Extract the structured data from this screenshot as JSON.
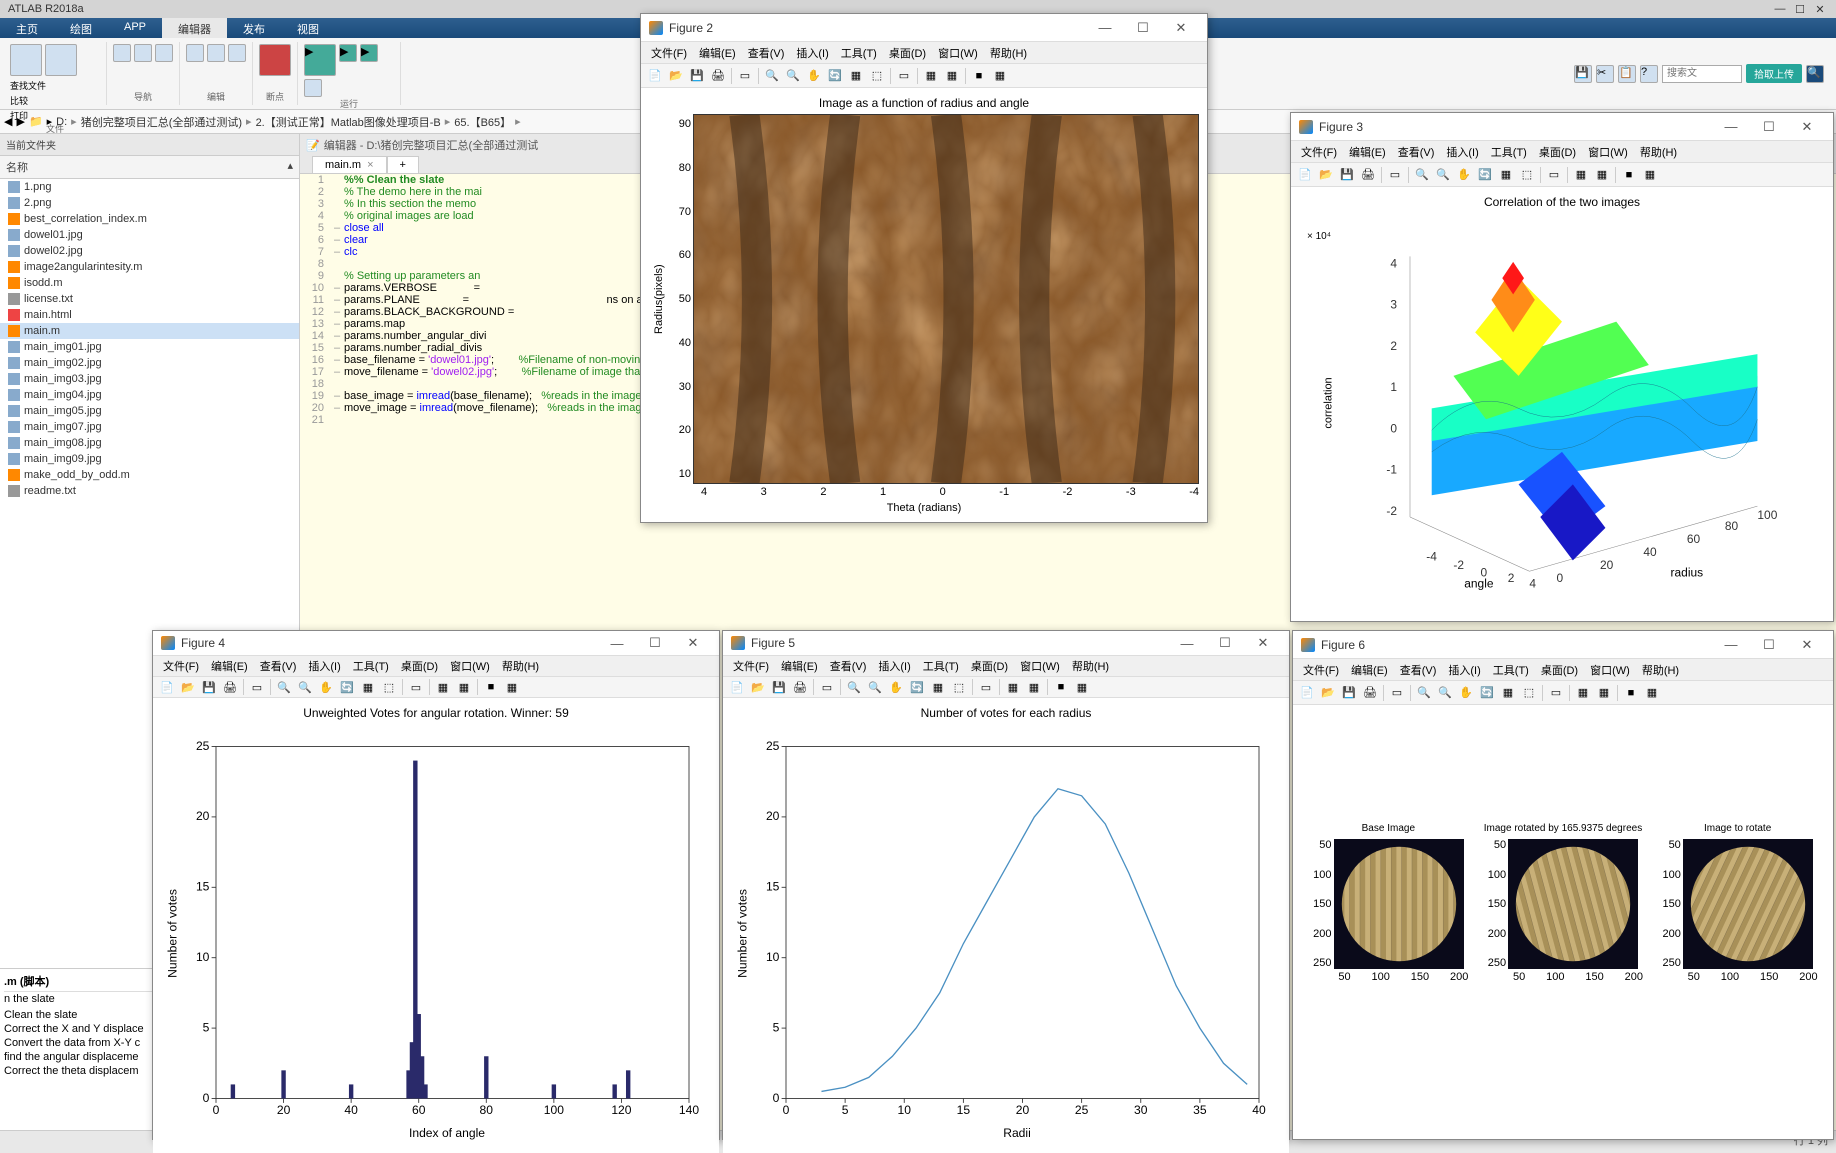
{
  "app": {
    "title": "ATLAB R2018a"
  },
  "ribbon": {
    "tabs": [
      "主页",
      "绘图",
      "APP",
      "编辑器",
      "发布",
      "视图"
    ],
    "active_tab": 3,
    "groups": {
      "file": {
        "label": "文件",
        "items": [
          "打开",
          "保存",
          "查找文件",
          "比较",
          "打印"
        ]
      },
      "nav": {
        "label": "导航",
        "items": [
          "转至",
          "查找",
          "书签"
        ]
      },
      "edit": {
        "label": "编辑",
        "items": [
          "插入",
          "注释",
          "缩进"
        ]
      },
      "bp": {
        "label": "断点",
        "items": [
          "断点"
        ]
      },
      "run": {
        "label": "运行",
        "items": [
          "运行",
          "运行并前进",
          "运行节",
          "前进",
          "运行并计时"
        ]
      }
    },
    "search_placeholder": "搜索文",
    "upload_label": "拾取上传"
  },
  "pathbar": {
    "drive": "D:",
    "segs": [
      "猪创完整项目汇总(全部通过测试)",
      "2.【测试正常】Matlab图像处理项目-B",
      "65.【B65】"
    ]
  },
  "file_panel": {
    "header": "当前文件夹",
    "col": "名称",
    "files": [
      {
        "name": "1.png",
        "type": "img"
      },
      {
        "name": "2.png",
        "type": "img"
      },
      {
        "name": "best_correlation_index.m",
        "type": "m"
      },
      {
        "name": "dowel01.jpg",
        "type": "img"
      },
      {
        "name": "dowel02.jpg",
        "type": "img"
      },
      {
        "name": "image2angularintesity.m",
        "type": "m"
      },
      {
        "name": "isodd.m",
        "type": "m"
      },
      {
        "name": "license.txt",
        "type": "txt"
      },
      {
        "name": "main.html",
        "type": "html"
      },
      {
        "name": "main.m",
        "type": "m",
        "selected": true
      },
      {
        "name": "main_img01.jpg",
        "type": "img"
      },
      {
        "name": "main_img02.jpg",
        "type": "img"
      },
      {
        "name": "main_img03.jpg",
        "type": "img"
      },
      {
        "name": "main_img04.jpg",
        "type": "img"
      },
      {
        "name": "main_img05.jpg",
        "type": "img"
      },
      {
        "name": "main_img07.jpg",
        "type": "img"
      },
      {
        "name": "main_img08.jpg",
        "type": "img"
      },
      {
        "name": "main_img09.jpg",
        "type": "img"
      },
      {
        "name": "make_odd_by_odd.m",
        "type": "m"
      },
      {
        "name": "readme.txt",
        "type": "txt"
      }
    ]
  },
  "details": {
    "header": ".m (脚本)",
    "lines": [
      "n the slate",
      "",
      "Clean the slate",
      "Correct the X and Y displace",
      "Convert the data from X-Y c",
      "find the angular displaceme",
      "Correct the theta displacem"
    ]
  },
  "editor": {
    "path_label": "编辑器 - D:\\猪创完整项目汇总(全部通过测试",
    "tab": "main.m",
    "code": [
      {
        "n": 1,
        "dash": "",
        "t": "%% Clean the slate",
        "cls": "c-sect"
      },
      {
        "n": 2,
        "dash": "",
        "t": "% The demo here in the mai",
        "cls": "c-comment"
      },
      {
        "n": 3,
        "dash": "",
        "t": "% In this section the memo",
        "cls": "c-comment"
      },
      {
        "n": 4,
        "dash": "",
        "t": "% original images are load",
        "cls": "c-comment"
      },
      {
        "n": 5,
        "dash": "–",
        "t": "close all",
        "cls": "",
        "kw": "close all"
      },
      {
        "n": 6,
        "dash": "–",
        "t": "clear",
        "cls": "c-keyword"
      },
      {
        "n": 7,
        "dash": "–",
        "t": "clc",
        "cls": "c-keyword"
      },
      {
        "n": 8,
        "dash": "",
        "t": "",
        "cls": ""
      },
      {
        "n": 9,
        "dash": "",
        "t": "% Setting up parameters an",
        "cls": "c-comment"
      },
      {
        "n": 10,
        "dash": "–",
        "t": "params.VERBOSE            =",
        "cls": ""
      },
      {
        "n": 11,
        "dash": "–",
        "t": "params.PLANE              =                                             ns on a sing",
        "cls": ""
      },
      {
        "n": 12,
        "dash": "–",
        "t": "params.BLACK_BACKGROUND =",
        "cls": ""
      },
      {
        "n": 13,
        "dash": "–",
        "t": "params.map",
        "cls": ""
      },
      {
        "n": 14,
        "dash": "–",
        "t": "params.number_angular_divi",
        "cls": ""
      },
      {
        "n": 15,
        "dash": "–",
        "t": "params.number_radial_divis",
        "cls": ""
      },
      {
        "n": 16,
        "dash": "–",
        "t": "base_filename = 'dowel01.jpg';        %Filename of non-moving image",
        "cls": ""
      },
      {
        "n": 17,
        "dash": "–",
        "t": "move_filename = 'dowel02.jpg';        %Filename of image that will move to the base image",
        "cls": ""
      },
      {
        "n": 18,
        "dash": "",
        "t": "",
        "cls": ""
      },
      {
        "n": 19,
        "dash": "–",
        "t": "base_image = imread(base_filename);   %reads in the image",
        "cls": ""
      },
      {
        "n": 20,
        "dash": "–",
        "t": "move_image = imread(move_filename);   %reads in the image",
        "cls": ""
      },
      {
        "n": 21,
        "dash": "",
        "t": "",
        "cls": ""
      }
    ]
  },
  "fig_menus": [
    "文件(F)",
    "编辑(E)",
    "查看(V)",
    "插入(I)",
    "工具(T)",
    "桌面(D)",
    "窗口(W)",
    "帮助(H)"
  ],
  "fig_toolbar_glyphs": [
    "📄",
    "📂",
    "💾",
    "🖨",
    "|",
    "▭",
    "|",
    "🔍",
    "🔍",
    "✋",
    "🔄",
    "▦",
    "⬚",
    "|",
    "▭",
    "|",
    "▦",
    "▦",
    "|",
    "■",
    "▦"
  ],
  "figure2": {
    "title": "Figure 2",
    "plot_title": "Image as a function of radius and angle",
    "xlabel": "Theta (radians)",
    "ylabel": "Radius(pixels)",
    "xticks": [
      4,
      3,
      2,
      1,
      0,
      -1,
      -2,
      -3,
      -4
    ],
    "yticks": [
      10,
      20,
      30,
      40,
      50,
      60,
      70,
      80,
      90
    ],
    "bg_gradient": [
      "#3a2818",
      "#8b5a2b",
      "#d2a679",
      "#5c3a1e"
    ]
  },
  "figure3": {
    "title": "Figure 3",
    "plot_title": "Correlation of the two images",
    "xlabel": "angle",
    "ylabel": "radius",
    "zlabel": "correlation",
    "zexp": "× 10⁴",
    "xticks": [
      -4,
      -2,
      0,
      2,
      4
    ],
    "yticks": [
      0,
      20,
      40,
      60,
      80,
      100
    ],
    "zticks": [
      -2,
      -1,
      0,
      1,
      2,
      3,
      4
    ]
  },
  "figure4": {
    "title": "Figure 4",
    "plot_title": "Unweighted Votes for angular rotation. Winner: 59",
    "xlabel": "Index of angle",
    "ylabel": "Number of votes",
    "xticks": [
      0,
      20,
      40,
      60,
      80,
      100,
      120,
      140
    ],
    "yticks": [
      0,
      5,
      10,
      15,
      20,
      25
    ],
    "bars": [
      {
        "x": 5,
        "y": 1
      },
      {
        "x": 20,
        "y": 2
      },
      {
        "x": 40,
        "y": 1
      },
      {
        "x": 57,
        "y": 2
      },
      {
        "x": 58,
        "y": 4
      },
      {
        "x": 59,
        "y": 24
      },
      {
        "x": 60,
        "y": 6
      },
      {
        "x": 61,
        "y": 3
      },
      {
        "x": 62,
        "y": 1
      },
      {
        "x": 80,
        "y": 3
      },
      {
        "x": 100,
        "y": 1
      },
      {
        "x": 118,
        "y": 1
      },
      {
        "x": 122,
        "y": 2
      }
    ],
    "bar_color": "#2a2a6a"
  },
  "figure5": {
    "title": "Figure 5",
    "plot_title": "Number of votes for each radius",
    "xlabel": "Radii",
    "ylabel": "Number of votes",
    "xticks": [
      0,
      5,
      10,
      15,
      20,
      25,
      30,
      35,
      40
    ],
    "yticks": [
      0,
      5,
      10,
      15,
      20,
      25
    ],
    "line_color": "#4a90c2",
    "points": [
      [
        3,
        0.5
      ],
      [
        5,
        0.8
      ],
      [
        7,
        1.5
      ],
      [
        9,
        3
      ],
      [
        11,
        5
      ],
      [
        13,
        7.5
      ],
      [
        15,
        11
      ],
      [
        17,
        14
      ],
      [
        19,
        17
      ],
      [
        21,
        20
      ],
      [
        23,
        22
      ],
      [
        25,
        21.5
      ],
      [
        27,
        19.5
      ],
      [
        29,
        16
      ],
      [
        31,
        12
      ],
      [
        33,
        8
      ],
      [
        35,
        5
      ],
      [
        37,
        2.5
      ],
      [
        39,
        1
      ]
    ]
  },
  "figure6": {
    "title": "Figure 6",
    "subtitles": [
      "Base Image",
      "Image rotated by 165.9375 degrees",
      "Image to rotate"
    ],
    "yticks": [
      50,
      100,
      150,
      200,
      250
    ],
    "xticks": [
      50,
      100,
      150,
      200
    ]
  },
  "status": {
    "text": "行 1  列"
  }
}
